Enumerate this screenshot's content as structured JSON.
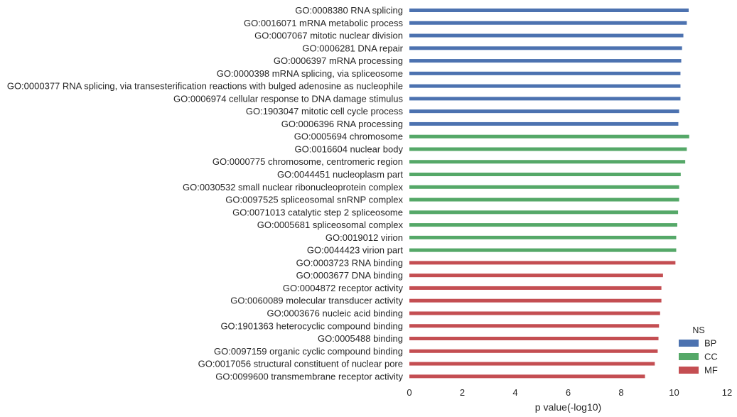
{
  "chart_data": {
    "type": "bar",
    "orientation": "horizontal",
    "xlabel": "p value(-log10)",
    "ylabel": "",
    "xlim": [
      0,
      12
    ],
    "xticks": [
      0,
      2,
      4,
      6,
      8,
      10,
      12
    ],
    "grid": false,
    "legend": {
      "title": "NS",
      "placement": "lower-right",
      "entries": [
        {
          "name": "BP",
          "color": "#4c72b0"
        },
        {
          "name": "CC",
          "color": "#55a868"
        },
        {
          "name": "MF",
          "color": "#c44e52"
        }
      ]
    },
    "categories": [
      {
        "label": "GO:0008380 RNA splicing",
        "ns": "BP",
        "value": 10.55
      },
      {
        "label": "GO:0016071 mRNA metabolic process",
        "ns": "BP",
        "value": 10.48
      },
      {
        "label": "GO:0007067 mitotic nuclear division",
        "ns": "BP",
        "value": 10.35
      },
      {
        "label": "GO:0006281 DNA repair",
        "ns": "BP",
        "value": 10.3
      },
      {
        "label": "GO:0006397 mRNA processing",
        "ns": "BP",
        "value": 10.27
      },
      {
        "label": "GO:0000398 mRNA splicing, via spliceosome",
        "ns": "BP",
        "value": 10.24
      },
      {
        "label": "GO:0000377 RNA splicing, via transesterification reactions with bulged adenosine as nucleophile",
        "ns": "BP",
        "value": 10.24
      },
      {
        "label": "GO:0006974 cellular response to DNA damage stimulus",
        "ns": "BP",
        "value": 10.24
      },
      {
        "label": "GO:1903047 mitotic cell cycle process",
        "ns": "BP",
        "value": 10.19
      },
      {
        "label": "GO:0006396 RNA processing",
        "ns": "BP",
        "value": 10.16
      },
      {
        "label": "GO:0005694 chromosome",
        "ns": "CC",
        "value": 10.57
      },
      {
        "label": "GO:0016604 nuclear body",
        "ns": "CC",
        "value": 10.48
      },
      {
        "label": "GO:0000775 chromosome, centromeric region",
        "ns": "CC",
        "value": 10.42
      },
      {
        "label": "GO:0044451 nucleoplasm part",
        "ns": "CC",
        "value": 10.25
      },
      {
        "label": "GO:0030532 small nuclear ribonucleoprotein complex",
        "ns": "CC",
        "value": 10.19
      },
      {
        "label": "GO:0097525 spliceosomal snRNP complex",
        "ns": "CC",
        "value": 10.19
      },
      {
        "label": "GO:0071013 catalytic step 2 spliceosome",
        "ns": "CC",
        "value": 10.15
      },
      {
        "label": "GO:0005681 spliceosomal complex",
        "ns": "CC",
        "value": 10.12
      },
      {
        "label": "GO:0019012 virion",
        "ns": "CC",
        "value": 10.08
      },
      {
        "label": "GO:0044423 virion part",
        "ns": "CC",
        "value": 10.08
      },
      {
        "label": "GO:0003723 RNA binding",
        "ns": "MF",
        "value": 10.05
      },
      {
        "label": "GO:0003677 DNA binding",
        "ns": "MF",
        "value": 9.58
      },
      {
        "label": "GO:0004872 receptor activity",
        "ns": "MF",
        "value": 9.52
      },
      {
        "label": "GO:0060089 molecular transducer activity",
        "ns": "MF",
        "value": 9.52
      },
      {
        "label": "GO:0003676 nucleic acid binding",
        "ns": "MF",
        "value": 9.47
      },
      {
        "label": "GO:1901363 heterocyclic compound binding",
        "ns": "MF",
        "value": 9.43
      },
      {
        "label": "GO:0005488 binding",
        "ns": "MF",
        "value": 9.41
      },
      {
        "label": "GO:0097159 organic cyclic compound binding",
        "ns": "MF",
        "value": 9.38
      },
      {
        "label": "GO:0017056 structural constituent of nuclear pore",
        "ns": "MF",
        "value": 9.27
      },
      {
        "label": "GO:0099600 transmembrane receptor activity",
        "ns": "MF",
        "value": 8.9
      }
    ]
  }
}
